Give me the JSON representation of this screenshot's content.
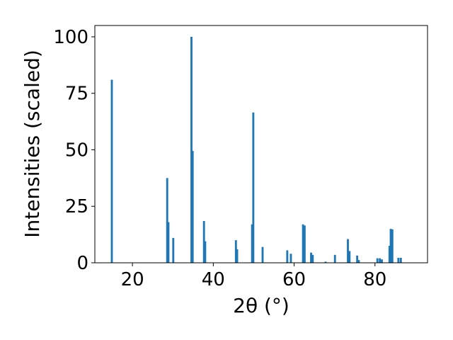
{
  "chart_data": {
    "type": "bar",
    "xlabel": "2θ (°)",
    "ylabel": "Intensities (scaled)",
    "xlim": [
      10.7,
      93.0
    ],
    "ylim": [
      0,
      105
    ],
    "bar_width": 0.5,
    "bar_color": "#1f77b4",
    "grid": false,
    "x_ticks": [
      20,
      40,
      60,
      80
    ],
    "y_ticks": [
      0,
      25,
      50,
      75,
      100
    ],
    "bars": [
      {
        "x": 14.9,
        "y": 81
      },
      {
        "x": 28.6,
        "y": 37.5
      },
      {
        "x": 28.9,
        "y": 18
      },
      {
        "x": 30.1,
        "y": 11
      },
      {
        "x": 34.6,
        "y": 100
      },
      {
        "x": 34.9,
        "y": 49.5
      },
      {
        "x": 37.7,
        "y": 18.5
      },
      {
        "x": 38.0,
        "y": 9.5
      },
      {
        "x": 45.6,
        "y": 10
      },
      {
        "x": 45.9,
        "y": 6
      },
      {
        "x": 49.6,
        "y": 17
      },
      {
        "x": 49.9,
        "y": 66.5
      },
      {
        "x": 52.2,
        "y": 7
      },
      {
        "x": 58.3,
        "y": 5.5
      },
      {
        "x": 59.2,
        "y": 4
      },
      {
        "x": 62.2,
        "y": 17
      },
      {
        "x": 62.6,
        "y": 16.5
      },
      {
        "x": 64.2,
        "y": 4.5
      },
      {
        "x": 64.6,
        "y": 3.5
      },
      {
        "x": 67.8,
        "y": 0.5
      },
      {
        "x": 70.1,
        "y": 3.5
      },
      {
        "x": 73.3,
        "y": 10.5
      },
      {
        "x": 73.7,
        "y": 5.2
      },
      {
        "x": 75.6,
        "y": 3.2
      },
      {
        "x": 76.0,
        "y": 1.2
      },
      {
        "x": 80.6,
        "y": 2
      },
      {
        "x": 81.2,
        "y": 2
      },
      {
        "x": 81.7,
        "y": 1.5
      },
      {
        "x": 83.6,
        "y": 7.5
      },
      {
        "x": 83.9,
        "y": 15
      },
      {
        "x": 84.3,
        "y": 14.8
      },
      {
        "x": 85.8,
        "y": 2.2
      },
      {
        "x": 86.4,
        "y": 2.2
      }
    ]
  }
}
